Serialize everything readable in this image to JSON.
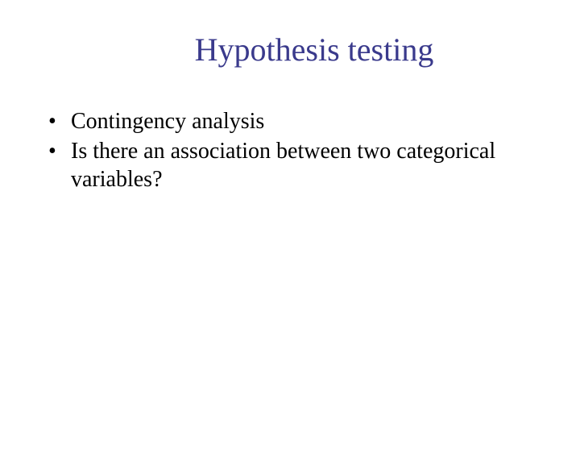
{
  "slide": {
    "title": "Hypothesis testing",
    "title_color": "#3a3a8c",
    "title_fontsize": 40,
    "background_color": "#ffffff",
    "bullets": [
      {
        "text": "Contingency analysis"
      },
      {
        "text": "Is there an association between two categorical variables?"
      }
    ],
    "bullet_color": "#000000",
    "bullet_fontsize": 28,
    "font_family": "Times New Roman"
  }
}
